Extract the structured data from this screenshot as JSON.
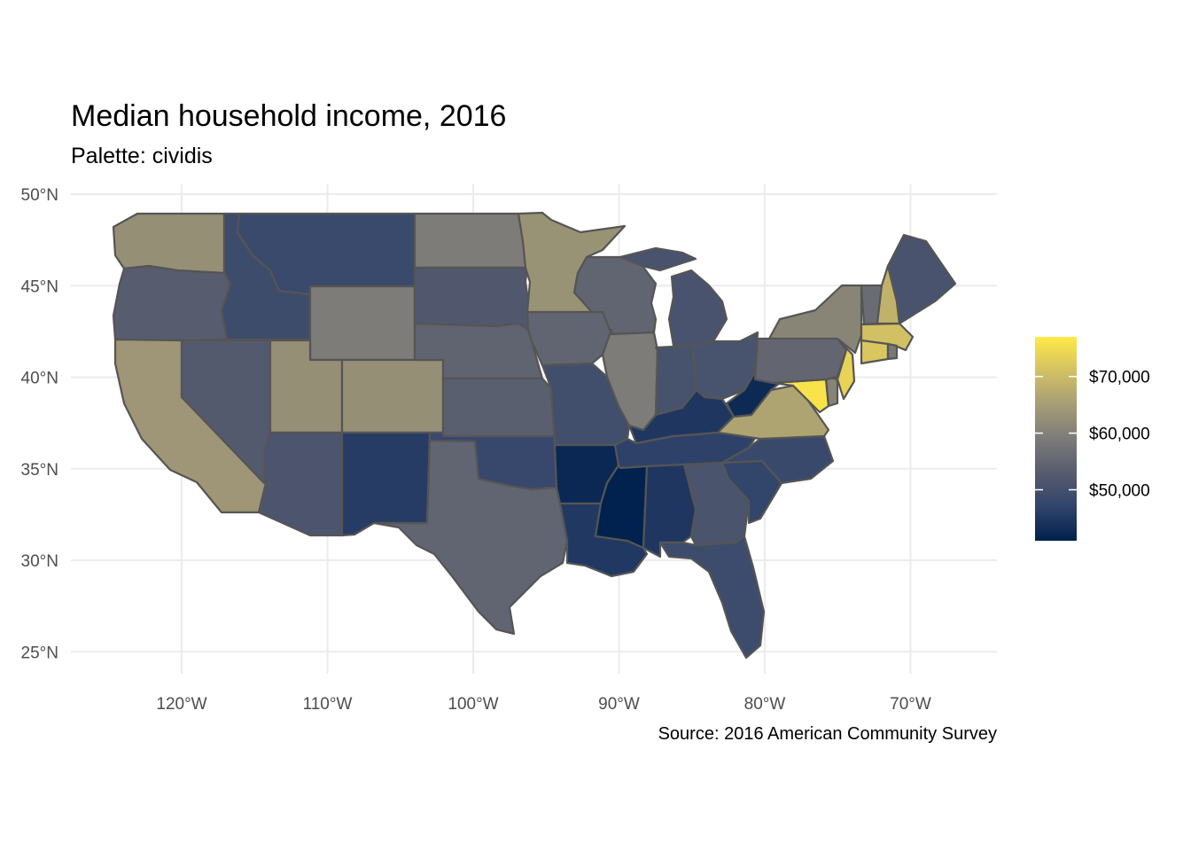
{
  "title": "Median household income, 2016",
  "subtitle": "Palette: cividis",
  "caption": "Source: 2016 American Community Survey",
  "axes": {
    "lat_ticks": [
      {
        "value": 50,
        "label": "50°N"
      },
      {
        "value": 45,
        "label": "45°N"
      },
      {
        "value": 40,
        "label": "40°N"
      },
      {
        "value": 35,
        "label": "35°N"
      },
      {
        "value": 30,
        "label": "30°N"
      },
      {
        "value": 25,
        "label": "25°N"
      }
    ],
    "lon_ticks": [
      {
        "value": -120,
        "label": "120°W"
      },
      {
        "value": -110,
        "label": "110°W"
      },
      {
        "value": -100,
        "label": "100°W"
      },
      {
        "value": -90,
        "label": "90°W"
      },
      {
        "value": -80,
        "label": "80°W"
      },
      {
        "value": -70,
        "label": "70°W"
      }
    ]
  },
  "legend": {
    "palette": "cividis",
    "min": 41000,
    "max": 77000,
    "ticks": [
      {
        "value": 50000,
        "label": "$50,000"
      },
      {
        "value": 60000,
        "label": "$60,000"
      },
      {
        "value": 70000,
        "label": "$70,000"
      }
    ],
    "colors": [
      "#00204d",
      "#31446b",
      "#575c6e",
      "#7c7b78",
      "#a69d75",
      "#d3c164",
      "#ffea46"
    ]
  },
  "states": [
    {
      "name": "Washington",
      "value": 62500
    },
    {
      "name": "Oregon",
      "value": 53000
    },
    {
      "name": "California",
      "value": 63800
    },
    {
      "name": "Idaho",
      "value": 49000
    },
    {
      "name": "Nevada",
      "value": 52400
    },
    {
      "name": "Montana",
      "value": 48400
    },
    {
      "name": "Wyoming",
      "value": 59100
    },
    {
      "name": "Utah",
      "value": 62600
    },
    {
      "name": "Arizona",
      "value": 51300
    },
    {
      "name": "Colorado",
      "value": 62500
    },
    {
      "name": "New Mexico",
      "value": 45700
    },
    {
      "name": "North Dakota",
      "value": 59100
    },
    {
      "name": "South Dakota",
      "value": 52000
    },
    {
      "name": "Nebraska",
      "value": 54400
    },
    {
      "name": "Kansas",
      "value": 53500
    },
    {
      "name": "Oklahoma",
      "value": 48000
    },
    {
      "name": "Texas",
      "value": 54700
    },
    {
      "name": "Minnesota",
      "value": 63200
    },
    {
      "name": "Iowa",
      "value": 54600
    },
    {
      "name": "Missouri",
      "value": 49600
    },
    {
      "name": "Arkansas",
      "value": 42300
    },
    {
      "name": "Louisiana",
      "value": 45100
    },
    {
      "name": "Wisconsin",
      "value": 54600
    },
    {
      "name": "Illinois",
      "value": 59200
    },
    {
      "name": "Michigan",
      "value": 50800
    },
    {
      "name": "Indiana",
      "value": 50400
    },
    {
      "name": "Ohio",
      "value": 50700
    },
    {
      "name": "Kentucky",
      "value": 44800
    },
    {
      "name": "Tennessee",
      "value": 46600
    },
    {
      "name": "Mississippi",
      "value": 41100
    },
    {
      "name": "Alabama",
      "value": 44800
    },
    {
      "name": "Georgia",
      "value": 51000
    },
    {
      "name": "Florida",
      "value": 48900
    },
    {
      "name": "South Carolina",
      "value": 47200
    },
    {
      "name": "North Carolina",
      "value": 48300
    },
    {
      "name": "Virginia",
      "value": 66100
    },
    {
      "name": "West Virginia",
      "value": 42600
    },
    {
      "name": "Maryland",
      "value": 76000
    },
    {
      "name": "Delaware",
      "value": 60500
    },
    {
      "name": "New Jersey",
      "value": 73700
    },
    {
      "name": "Pennsylvania",
      "value": 55000
    },
    {
      "name": "New York",
      "value": 60700
    },
    {
      "name": "Vermont",
      "value": 56000
    },
    {
      "name": "New Hampshire",
      "value": 68500
    },
    {
      "name": "Maine",
      "value": 50800
    },
    {
      "name": "Massachusetts",
      "value": 70900
    },
    {
      "name": "Connecticut",
      "value": 71800
    },
    {
      "name": "Rhode Island",
      "value": 58400
    }
  ]
}
